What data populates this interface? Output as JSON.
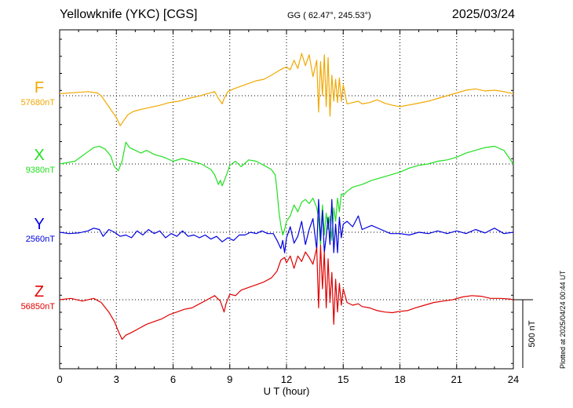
{
  "header": {
    "station": "Yellowknife (YKC)  [CGS]",
    "coords": "GG ( 62.47°, 245.53°)",
    "date": "2025/03/24",
    "plotted": "Plotted at 2025/04/24 00:44 UT"
  },
  "chart_data": {
    "type": "line",
    "xlabel": "U T (hour)",
    "xlim": [
      0,
      24
    ],
    "xticks": [
      "0",
      "3",
      "6",
      "9",
      "12",
      "15",
      "18",
      "21",
      "24"
    ],
    "scale_label": "500 nT",
    "scale_nT": 500,
    "grid": true,
    "colors": {
      "F": "#f0a800",
      "X": "#20e020",
      "Y": "#0000e0",
      "Z": "#e00000"
    },
    "series": [
      {
        "name": "F",
        "baseline": "57680nT",
        "x": [
          0,
          1,
          1.5,
          2,
          2.2,
          2.5,
          2.8,
          3,
          3.2,
          3.4,
          3.6,
          3.9,
          4.3,
          4.8,
          5.3,
          5.8,
          6.3,
          6.8,
          7.3,
          7.8,
          8.2,
          8.4,
          8.6,
          8.7,
          8.9,
          9.2,
          9.6,
          10,
          10.4,
          10.8,
          11.2,
          11.5,
          11.8,
          12,
          12.2,
          12.4,
          12.6,
          12.8,
          13,
          13.2,
          13.4,
          13.6,
          13.7,
          13.8,
          13.9,
          14,
          14.1,
          14.2,
          14.3,
          14.4,
          14.5,
          14.6,
          14.7,
          14.8,
          14.9,
          15,
          15.2,
          15.5,
          15.8,
          16,
          16.4,
          16.8,
          17.2,
          17.6,
          18,
          18.4,
          18.8,
          19.5,
          20,
          20.5,
          21,
          21.5,
          22,
          22.5,
          23,
          23.5,
          24
        ],
        "y": [
          15,
          25,
          30,
          20,
          0,
          -60,
          -120,
          -160,
          -220,
          -180,
          -140,
          -115,
          -100,
          -85,
          -70,
          -50,
          -40,
          -20,
          -5,
          15,
          30,
          -20,
          -60,
          -20,
          30,
          50,
          70,
          90,
          110,
          120,
          150,
          175,
          200,
          210,
          190,
          260,
          200,
          310,
          220,
          300,
          140,
          260,
          -120,
          250,
          0,
          300,
          -80,
          280,
          -150,
          150,
          -40,
          120,
          -50,
          130,
          -40,
          80,
          -60,
          -50,
          -40,
          -60,
          -50,
          -30,
          -55,
          -70,
          -80,
          -70,
          -60,
          -40,
          -20,
          0,
          20,
          40,
          50,
          35,
          40,
          30,
          15
        ]
      },
      {
        "name": "X",
        "baseline": "9380nT",
        "x": [
          0,
          0.8,
          1.2,
          1.5,
          1.8,
          2.1,
          2.4,
          2.7,
          2.9,
          3.1,
          3.3,
          3.5,
          3.7,
          4,
          4.3,
          4.6,
          5,
          5.5,
          6,
          6.5,
          7,
          7.5,
          8,
          8.2,
          8.4,
          8.5,
          8.6,
          8.8,
          9,
          9.3,
          9.6,
          10,
          10.4,
          10.8,
          11.2,
          11.4,
          11.5,
          11.6,
          11.7,
          11.8,
          11.9,
          12,
          12.2,
          12.4,
          12.6,
          12.8,
          13,
          13.2,
          13.4,
          13.6,
          13.7,
          13.8,
          13.9,
          14,
          14.1,
          14.2,
          14.3,
          14.4,
          14.5,
          14.6,
          14.7,
          14.8,
          14.9,
          15,
          15.2,
          15.5,
          16,
          16.5,
          17,
          17.5,
          18,
          18.5,
          19,
          19.5,
          20,
          20.5,
          21,
          21.5,
          22,
          22.5,
          23,
          23.5,
          24
        ],
        "y": [
          0,
          20,
          60,
          90,
          120,
          130,
          110,
          60,
          -20,
          -50,
          20,
          160,
          120,
          100,
          80,
          100,
          70,
          50,
          20,
          40,
          20,
          0,
          -40,
          -80,
          -150,
          -120,
          -160,
          -90,
          -10,
          20,
          -20,
          30,
          20,
          -10,
          -40,
          -80,
          -200,
          -350,
          -450,
          -520,
          -480,
          -420,
          -380,
          -300,
          -350,
          -280,
          -260,
          -290,
          -250,
          -320,
          -400,
          -600,
          -300,
          -520,
          -360,
          -480,
          -380,
          -560,
          -320,
          -420,
          -250,
          -350,
          -220,
          -230,
          -200,
          -170,
          -150,
          -120,
          -100,
          -80,
          -60,
          -30,
          -10,
          0,
          20,
          30,
          50,
          80,
          100,
          120,
          130,
          100,
          0
        ]
      },
      {
        "name": "Y",
        "baseline": "2560nT",
        "x": [
          0,
          0.5,
          1,
          1.5,
          1.8,
          2.1,
          2.3,
          2.6,
          2.9,
          3.2,
          3.5,
          3.8,
          4.1,
          4.4,
          4.7,
          5,
          5.3,
          5.6,
          5.9,
          6.2,
          6.5,
          6.8,
          7.1,
          7.4,
          7.7,
          8,
          8.3,
          8.6,
          8.9,
          9.2,
          9.5,
          9.8,
          10.1,
          10.4,
          10.7,
          11,
          11.3,
          11.5,
          11.7,
          11.8,
          11.9,
          12,
          12.2,
          12.4,
          12.6,
          12.8,
          13,
          13.2,
          13.4,
          13.6,
          13.7,
          13.8,
          13.9,
          14,
          14.1,
          14.2,
          14.3,
          14.4,
          14.5,
          14.6,
          14.7,
          14.8,
          14.9,
          15,
          15.2,
          15.5,
          15.8,
          16,
          16.5,
          17,
          17.5,
          18,
          18.5,
          19,
          19.5,
          20,
          20.5,
          21,
          21.5,
          22,
          22.5,
          23,
          23.5,
          24
        ],
        "y": [
          0,
          -10,
          -5,
          10,
          30,
          20,
          -30,
          20,
          0,
          -30,
          -20,
          -40,
          10,
          -20,
          20,
          -10,
          10,
          -40,
          -10,
          -30,
          10,
          -30,
          -20,
          -40,
          -20,
          -50,
          -30,
          -70,
          -40,
          -60,
          -20,
          -20,
          0,
          -10,
          10,
          -10,
          -10,
          -60,
          -120,
          -60,
          -150,
          -40,
          40,
          -80,
          -30,
          80,
          -90,
          20,
          100,
          -130,
          240,
          -60,
          160,
          -150,
          -30,
          110,
          -90,
          240,
          -150,
          60,
          -150,
          110,
          -40,
          60,
          80,
          40,
          120,
          20,
          50,
          20,
          -10,
          -10,
          -20,
          0,
          -10,
          10,
          -10,
          10,
          -10,
          20,
          -5,
          30,
          -10,
          0
        ]
      },
      {
        "name": "Z",
        "baseline": "56850nT",
        "x": [
          0,
          0.6,
          1.2,
          1.8,
          2.2,
          2.6,
          2.9,
          3.1,
          3.3,
          3.5,
          3.8,
          4.2,
          4.6,
          5,
          5.4,
          5.8,
          6.2,
          6.6,
          7,
          7.4,
          7.8,
          8.2,
          8.5,
          8.7,
          8.8,
          9,
          9.3,
          9.6,
          10,
          10.4,
          10.8,
          11.2,
          11.5,
          11.7,
          11.9,
          12,
          12.2,
          12.4,
          12.6,
          12.8,
          13,
          13.2,
          13.4,
          13.6,
          13.7,
          13.8,
          13.9,
          14,
          14.1,
          14.2,
          14.3,
          14.4,
          14.5,
          14.6,
          14.7,
          14.8,
          14.9,
          15,
          15.2,
          15.5,
          15.8,
          16,
          16.4,
          16.8,
          17.2,
          17.6,
          18,
          18.4,
          18.8,
          19.3,
          19.8,
          20.3,
          20.8,
          21.3,
          21.8,
          22.3,
          22.8,
          23.3,
          23.8,
          24
        ],
        "y": [
          0,
          10,
          -10,
          10,
          -20,
          -90,
          -160,
          -230,
          -290,
          -260,
          -240,
          -210,
          -180,
          -160,
          -140,
          -110,
          -90,
          -70,
          -60,
          -30,
          0,
          30,
          -10,
          -90,
          -30,
          40,
          30,
          70,
          90,
          110,
          130,
          160,
          210,
          290,
          310,
          270,
          320,
          230,
          320,
          280,
          350,
          310,
          260,
          380,
          -60,
          400,
          80,
          350,
          -60,
          300,
          -20,
          200,
          -180,
          150,
          -90,
          120,
          -40,
          80,
          -20,
          -40,
          -30,
          -50,
          -60,
          -80,
          -90,
          -95,
          -85,
          -80,
          -60,
          -40,
          -20,
          -10,
          0,
          20,
          30,
          25,
          10,
          10,
          5,
          0
        ]
      }
    ]
  }
}
